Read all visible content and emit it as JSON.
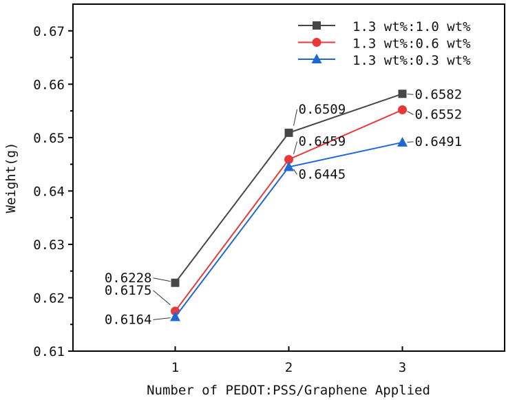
{
  "chart_data": {
    "type": "line",
    "title": "",
    "xlabel": "Number of PEDOT:PSS/Graphene Applied",
    "ylabel": "Weight(g)",
    "x": [
      1,
      2,
      3
    ],
    "xticks": [
      "1",
      "2",
      "3"
    ],
    "xlim": [
      0.1,
      3.9
    ],
    "ylim": [
      0.61,
      0.675
    ],
    "yticks": [
      "0.61",
      "0.62",
      "0.63",
      "0.64",
      "0.65",
      "0.66",
      "0.67"
    ],
    "grid": false,
    "legend_position": "top-right",
    "series": [
      {
        "name": "1.3 wt%:1.0 wt%",
        "values": [
          0.6228,
          0.6509,
          0.6582
        ],
        "labels": [
          "0.6228",
          "0.6509",
          "0.6582"
        ],
        "color": "#474747",
        "marker": "square"
      },
      {
        "name": "1.3 wt%:0.6 wt%",
        "values": [
          0.6175,
          0.6459,
          0.6552
        ],
        "labels": [
          "0.6175",
          "0.6459",
          "0.6552"
        ],
        "color": "#e8393a",
        "marker": "circle"
      },
      {
        "name": "1.3 wt%:0.3 wt%",
        "values": [
          0.6164,
          0.6445,
          0.6491
        ],
        "labels": [
          "0.6164",
          "0.6445",
          "0.6491"
        ],
        "color": "#1e68d6",
        "marker": "triangle"
      }
    ]
  }
}
